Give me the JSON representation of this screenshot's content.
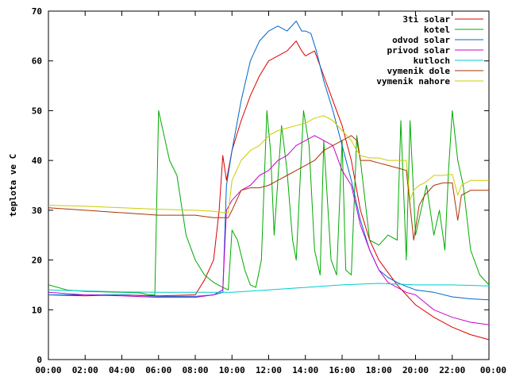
{
  "chart_data": {
    "type": "line",
    "title": "",
    "xlabel": "",
    "ylabel": "teplota ve C",
    "xlim": [
      0,
      24
    ],
    "ylim": [
      0,
      70
    ],
    "x_ticks": [
      "00:00",
      "02:00",
      "04:00",
      "06:00",
      "08:00",
      "10:00",
      "12:00",
      "14:00",
      "16:00",
      "18:00",
      "20:00",
      "22:00",
      "00:00"
    ],
    "y_ticks": [
      0,
      10,
      20,
      30,
      40,
      50,
      60,
      70
    ],
    "grid": false,
    "legend_position": "top-right",
    "series": [
      {
        "name": "3ti solar",
        "color": "#dd0000",
        "x": [
          0,
          2,
          4,
          6,
          8,
          8.5,
          9,
          9.3,
          9.5,
          9.7,
          10,
          10.5,
          11,
          11.5,
          12,
          12.5,
          13,
          13.5,
          13.8,
          14,
          14.5,
          15,
          15.5,
          16,
          16.5,
          17,
          17.5,
          18,
          18.5,
          19,
          19.5,
          20,
          21,
          22,
          23,
          24
        ],
        "y": [
          13,
          12.8,
          13,
          12.8,
          13,
          16,
          20,
          30,
          41,
          36,
          42,
          48,
          53,
          57,
          60,
          61,
          62,
          64,
          62,
          61,
          62,
          57,
          52,
          47,
          40,
          30,
          24,
          20,
          17.5,
          15,
          13,
          11,
          8.5,
          6.5,
          5,
          4
        ]
      },
      {
        "name": "kotel",
        "color": "#00aa00",
        "x": [
          0,
          1,
          2,
          3,
          4,
          5,
          5.5,
          5.8,
          6,
          6.3,
          6.6,
          7,
          7.5,
          8,
          8.5,
          9,
          9.5,
          9.8,
          10,
          10.3,
          10.7,
          11,
          11.3,
          11.6,
          11.9,
          12.1,
          12.3,
          12.7,
          13,
          13.3,
          13.5,
          13.9,
          14.2,
          14.5,
          14.8,
          15,
          15.4,
          15.7,
          16,
          16.2,
          16.5,
          16.8,
          17,
          17.5,
          18,
          18.5,
          19,
          19.2,
          19.5,
          19.7,
          20,
          20.3,
          20.6,
          21,
          21.3,
          21.6,
          21.8,
          22,
          22.3,
          22.6,
          23,
          23.5,
          24
        ],
        "y": [
          15,
          14,
          13.7,
          13.6,
          13.5,
          13.4,
          13,
          13,
          50,
          45,
          40,
          37,
          25,
          20,
          17,
          15.5,
          14.5,
          14,
          26,
          24,
          18,
          15,
          14.5,
          20,
          50,
          42,
          25,
          47,
          38,
          24,
          20,
          50,
          43,
          22,
          17,
          44,
          20,
          17,
          44,
          18,
          17,
          45,
          40,
          24,
          23,
          25,
          24,
          48,
          20,
          48,
          25,
          30,
          35,
          25,
          30,
          22,
          38,
          50,
          40,
          35,
          22,
          17,
          15
        ]
      },
      {
        "name": "odvod solar",
        "color": "#0066cc",
        "x": [
          0,
          2,
          4,
          6,
          8,
          9,
          9.5,
          9.7,
          10,
          10.5,
          11,
          11.5,
          12,
          12.5,
          13,
          13.5,
          13.8,
          14,
          14.3,
          14.6,
          15,
          15.5,
          16,
          16.5,
          17,
          17.5,
          18,
          18.5,
          19,
          19.5,
          20,
          21,
          22,
          23,
          24
        ],
        "y": [
          13,
          13,
          13,
          12.7,
          12.7,
          13,
          13.5,
          35,
          42,
          52,
          60,
          64,
          66,
          67,
          66,
          68,
          66,
          66,
          65.5,
          62,
          56,
          50,
          43,
          36,
          28,
          22,
          18,
          16.5,
          15.5,
          14.7,
          14,
          13.5,
          12.6,
          12.2,
          12
        ]
      },
      {
        "name": "privod solar",
        "color": "#cc00cc",
        "x": [
          0,
          2,
          4,
          6,
          8,
          9,
          9.5,
          9.7,
          10,
          10.5,
          11,
          11.5,
          12,
          12.5,
          13,
          13.5,
          14,
          14.5,
          15,
          15.5,
          16,
          16.5,
          17,
          17.5,
          18,
          18.5,
          19,
          19.5,
          20,
          21,
          22,
          23,
          24
        ],
        "y": [
          13.5,
          13,
          12.8,
          12.5,
          12.5,
          13,
          14,
          30,
          32,
          34,
          35,
          37,
          38,
          40,
          41,
          43,
          44,
          45,
          44,
          43,
          38,
          35,
          27,
          22,
          18,
          15.5,
          14.5,
          13.5,
          13,
          10,
          8.5,
          7.5,
          7
        ]
      },
      {
        "name": "kutloch",
        "color": "#00cccc",
        "x": [
          0,
          2,
          4,
          6,
          8,
          10,
          12,
          14,
          16,
          18,
          20,
          22,
          24
        ],
        "y": [
          14,
          13.8,
          13.6,
          13.5,
          13.5,
          13.5,
          14,
          14.5,
          15,
          15.3,
          15,
          15,
          14.8
        ]
      },
      {
        "name": "vymenik dole",
        "color": "#aa3300",
        "x": [
          0,
          2,
          4,
          6,
          8,
          9,
          9.5,
          9.8,
          10,
          10.5,
          11,
          11.5,
          12,
          12.5,
          13,
          13.5,
          14,
          14.5,
          15,
          15.5,
          16,
          16.5,
          16.8,
          17,
          17.5,
          18,
          18.5,
          19,
          19.5,
          19.7,
          19.9,
          20.2,
          20.5,
          21,
          21.5,
          22,
          22.3,
          22.5,
          23,
          24
        ],
        "y": [
          30.5,
          30,
          29.5,
          29,
          29,
          28.5,
          28.5,
          28.5,
          30,
          34,
          34.5,
          34.5,
          35,
          36,
          37,
          38,
          39,
          40,
          42,
          43,
          44,
          45,
          44,
          40,
          40,
          39.5,
          39,
          38.5,
          38,
          31,
          24,
          31,
          33,
          35,
          35.5,
          35.5,
          28,
          33,
          34,
          34
        ]
      },
      {
        "name": "vymenik nahore",
        "color": "#cccc00",
        "x": [
          0,
          2,
          4,
          6,
          8,
          9,
          9.5,
          9.8,
          10,
          10.5,
          11,
          11.5,
          12,
          12.5,
          13,
          13.5,
          14,
          14.5,
          15,
          15.5,
          16,
          16.5,
          16.8,
          17,
          17.5,
          18,
          18.5,
          19,
          19.5,
          19.7,
          19.9,
          20.2,
          20.5,
          21,
          21.5,
          22,
          22.3,
          22.5,
          23,
          24
        ],
        "y": [
          31,
          30.8,
          30.5,
          30.2,
          30,
          29.8,
          29.5,
          29.5,
          36,
          40,
          42,
          43,
          45,
          46,
          46.5,
          47,
          47.5,
          48.5,
          49,
          48,
          46,
          44,
          42,
          41,
          40.5,
          40.5,
          40,
          40,
          40,
          32,
          34,
          35,
          35.5,
          37,
          37,
          37.2,
          33,
          35,
          36,
          36
        ]
      }
    ]
  }
}
